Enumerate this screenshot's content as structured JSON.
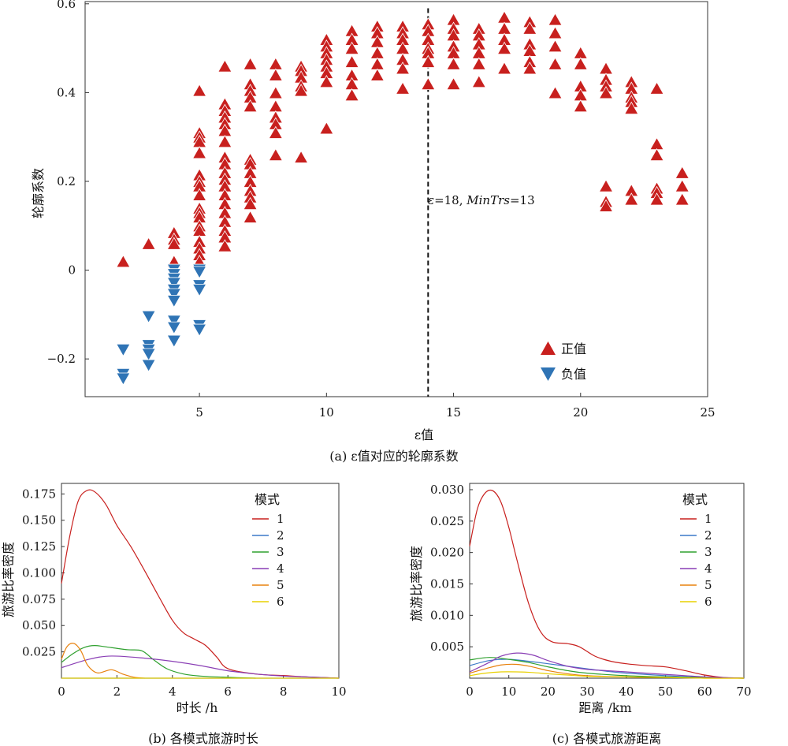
{
  "chart_data": [
    {
      "type": "scatter",
      "title": "(a) ε值对应的轮廓系数",
      "xlabel": "ε值",
      "ylabel": "轮廓系数",
      "xlim": [
        0.5,
        25
      ],
      "ylim": [
        -0.285,
        0.605
      ],
      "xticks": [
        "5",
        "10",
        "15",
        "20",
        "25"
      ],
      "yticks": [
        "−0.2",
        "0",
        "0.2",
        "0.4",
        "0.6"
      ],
      "legend": {
        "position": "bottom-right",
        "entries": [
          "正值",
          "负值"
        ]
      },
      "colors": {
        "positive": "#c8201e",
        "negative": "#2f74b5"
      },
      "annotation": {
        "x": 14,
        "label_eps": "ε",
        "label_rest1": "=18, ",
        "label_minTrs": "MinTrs",
        "label_rest2": "=13"
      },
      "positive": [
        {
          "x": 2,
          "y": [
            0.02
          ]
        },
        {
          "x": 3,
          "y": [
            0.06
          ]
        },
        {
          "x": 4,
          "y": [
            0.085,
            0.07,
            0.06,
            0.02
          ]
        },
        {
          "x": 5,
          "y": [
            0.405,
            0.31,
            0.3,
            0.29,
            0.265,
            0.215,
            0.2,
            0.19,
            0.17,
            0.14,
            0.13,
            0.12,
            0.1,
            0.09,
            0.065,
            0.05,
            0.035,
            0.02
          ]
        },
        {
          "x": 6,
          "y": [
            0.46,
            0.375,
            0.36,
            0.345,
            0.33,
            0.315,
            0.29,
            0.255,
            0.24,
            0.22,
            0.205,
            0.19,
            0.17,
            0.15,
            0.13,
            0.11,
            0.09,
            0.075,
            0.055
          ]
        },
        {
          "x": 7,
          "y": [
            0.465,
            0.42,
            0.405,
            0.39,
            0.37,
            0.25,
            0.24,
            0.22,
            0.2,
            0.18,
            0.165,
            0.15,
            0.12
          ]
        },
        {
          "x": 8,
          "y": [
            0.465,
            0.44,
            0.4,
            0.37,
            0.345,
            0.33,
            0.31,
            0.26
          ]
        },
        {
          "x": 9,
          "y": [
            0.46,
            0.45,
            0.435,
            0.415,
            0.405,
            0.255
          ]
        },
        {
          "x": 10,
          "y": [
            0.52,
            0.505,
            0.49,
            0.475,
            0.46,
            0.445,
            0.425,
            0.32
          ]
        },
        {
          "x": 11,
          "y": [
            0.54,
            0.52,
            0.5,
            0.47,
            0.44,
            0.42,
            0.395
          ]
        },
        {
          "x": 12,
          "y": [
            0.55,
            0.535,
            0.515,
            0.49,
            0.465,
            0.44
          ]
        },
        {
          "x": 13,
          "y": [
            0.55,
            0.535,
            0.52,
            0.5,
            0.475,
            0.455,
            0.41
          ]
        },
        {
          "x": 14,
          "y": [
            0.555,
            0.54,
            0.52,
            0.5,
            0.49,
            0.47,
            0.42
          ]
        },
        {
          "x": 15,
          "y": [
            0.565,
            0.545,
            0.53,
            0.505,
            0.49,
            0.465,
            0.42
          ]
        },
        {
          "x": 16,
          "y": [
            0.545,
            0.53,
            0.51,
            0.49,
            0.465,
            0.425
          ]
        },
        {
          "x": 17,
          "y": [
            0.57,
            0.545,
            0.52,
            0.5,
            0.455
          ]
        },
        {
          "x": 18,
          "y": [
            0.56,
            0.545,
            0.51,
            0.495,
            0.47,
            0.455
          ]
        },
        {
          "x": 19,
          "y": [
            0.565,
            0.535,
            0.505,
            0.465,
            0.4
          ]
        },
        {
          "x": 20,
          "y": [
            0.49,
            0.465,
            0.415,
            0.395,
            0.37
          ]
        },
        {
          "x": 21,
          "y": [
            0.455,
            0.43,
            0.415,
            0.4,
            0.19,
            0.155,
            0.145
          ]
        },
        {
          "x": 22,
          "y": [
            0.425,
            0.41,
            0.39,
            0.38,
            0.365,
            0.18,
            0.16
          ]
        },
        {
          "x": 23,
          "y": [
            0.41,
            0.285,
            0.26,
            0.185,
            0.175,
            0.16
          ]
        },
        {
          "x": 24,
          "y": [
            0.22,
            0.19,
            0.16
          ]
        }
      ],
      "negative": [
        {
          "x": 2,
          "y": [
            -0.18,
            -0.235,
            -0.245
          ]
        },
        {
          "x": 3,
          "y": [
            -0.105,
            -0.17,
            -0.18,
            -0.19,
            -0.215
          ]
        },
        {
          "x": 4,
          "y": [
            0.0,
            -0.01,
            -0.02,
            -0.03,
            -0.045,
            -0.055,
            -0.07,
            -0.115,
            -0.13,
            -0.16
          ]
        },
        {
          "x": 5,
          "y": [
            0.0,
            -0.005,
            -0.035,
            -0.045,
            -0.125,
            -0.135
          ]
        }
      ]
    },
    {
      "type": "line",
      "title": "(b) 各模式旅游时长",
      "xlabel": "时长 /h",
      "ylabel": "旅游比率密度",
      "xlim": [
        0,
        10
      ],
      "ylim": [
        0,
        0.185
      ],
      "xticks": [
        "0",
        "2",
        "4",
        "6",
        "8",
        "10"
      ],
      "yticks": [
        "0.025",
        "0.050",
        "0.075",
        "0.100",
        "0.125",
        "0.150",
        "0.175"
      ],
      "legend": {
        "title": "模式",
        "position": "top-right",
        "entries": [
          "1",
          "2",
          "3",
          "4",
          "5",
          "6"
        ]
      },
      "series": [
        {
          "name": "1",
          "color": "#c8201e",
          "x": [
            0,
            0.3,
            0.6,
            0.9,
            1.2,
            1.6,
            2,
            2.5,
            3,
            3.5,
            4,
            4.4,
            4.8,
            5.2,
            5.6,
            6,
            7,
            8,
            9,
            10
          ],
          "y": [
            0.09,
            0.135,
            0.168,
            0.178,
            0.177,
            0.165,
            0.145,
            0.125,
            0.102,
            0.078,
            0.055,
            0.043,
            0.037,
            0.031,
            0.02,
            0.009,
            0.004,
            0.0025,
            0.001,
            0
          ]
        },
        {
          "name": "2",
          "color": "#3c78c8",
          "x": [
            0,
            2,
            4,
            6,
            10
          ],
          "y": [
            0,
            0,
            0,
            0,
            0
          ]
        },
        {
          "name": "3",
          "color": "#2ea02e",
          "x": [
            0,
            0.4,
            0.8,
            1.2,
            1.8,
            2.4,
            2.9,
            3.3,
            3.8,
            4.4,
            5,
            5.8,
            7
          ],
          "y": [
            0.015,
            0.023,
            0.029,
            0.031,
            0.029,
            0.027,
            0.026,
            0.018,
            0.009,
            0.004,
            0.002,
            0.001,
            0
          ]
        },
        {
          "name": "4",
          "color": "#8a3fb5",
          "x": [
            0,
            1,
            1.8,
            3,
            4,
            5,
            6,
            7,
            8,
            9,
            10
          ],
          "y": [
            0.01,
            0.018,
            0.021,
            0.019,
            0.016,
            0.012,
            0.007,
            0.004,
            0.002,
            0.001,
            0
          ]
        },
        {
          "name": "5",
          "color": "#e8820e",
          "x": [
            0,
            0.2,
            0.45,
            0.7,
            0.95,
            1.3,
            1.8,
            2.2,
            2.6,
            3
          ],
          "y": [
            0.018,
            0.03,
            0.033,
            0.026,
            0.012,
            0.005,
            0.008,
            0.004,
            0.001,
            0
          ]
        },
        {
          "name": "6",
          "color": "#e8d000",
          "x": [
            0,
            2,
            4,
            6,
            10
          ],
          "y": [
            0,
            0,
            0,
            0,
            0
          ]
        }
      ]
    },
    {
      "type": "line",
      "title": "(c) 各模式旅游距离",
      "xlabel": "距离 /km",
      "ylabel": "旅游比率密度",
      "xlim": [
        0,
        70
      ],
      "ylim": [
        0,
        0.031
      ],
      "xticks": [
        "0",
        "10",
        "20",
        "30",
        "40",
        "50",
        "60",
        "70"
      ],
      "yticks": [
        "0.005",
        "0.010",
        "0.015",
        "0.020",
        "0.025",
        "0.030"
      ],
      "legend": {
        "title": "模式",
        "position": "top-right",
        "entries": [
          "1",
          "2",
          "3",
          "4",
          "5",
          "6"
        ]
      },
      "series": [
        {
          "name": "1",
          "color": "#c8201e",
          "x": [
            0,
            2,
            4,
            6,
            8,
            10,
            12,
            15,
            18,
            21,
            25,
            28,
            32,
            36,
            40,
            45,
            50,
            55,
            60,
            65,
            70
          ],
          "y": [
            0.021,
            0.027,
            0.0295,
            0.0298,
            0.028,
            0.024,
            0.019,
            0.012,
            0.0075,
            0.0058,
            0.0055,
            0.005,
            0.0035,
            0.0027,
            0.0023,
            0.002,
            0.0018,
            0.0012,
            0.0005,
            0.0001,
            0
          ]
        },
        {
          "name": "2",
          "color": "#3c78c8",
          "x": [
            0,
            5,
            10,
            15,
            20,
            25,
            30,
            35,
            40,
            50,
            60,
            70
          ],
          "y": [
            0.002,
            0.0028,
            0.003,
            0.0027,
            0.0023,
            0.0019,
            0.0015,
            0.0011,
            0.0008,
            0.0004,
            0.0001,
            0
          ]
        },
        {
          "name": "3",
          "color": "#2ea02e",
          "x": [
            0,
            5,
            10,
            15,
            20,
            25,
            30,
            40,
            50,
            60,
            70
          ],
          "y": [
            0.0029,
            0.0033,
            0.003,
            0.0025,
            0.0018,
            0.0012,
            0.0008,
            0.0004,
            0.0002,
            0.0001,
            0
          ]
        },
        {
          "name": "4",
          "color": "#8a3fb5",
          "x": [
            0,
            5,
            8,
            12,
            16,
            20,
            25,
            30,
            35,
            40,
            45,
            50,
            55,
            60,
            65,
            70
          ],
          "y": [
            0.001,
            0.0025,
            0.0035,
            0.004,
            0.0037,
            0.0028,
            0.0019,
            0.0014,
            0.0012,
            0.001,
            0.0008,
            0.0006,
            0.0004,
            0.0002,
            0.0001,
            0
          ]
        },
        {
          "name": "5",
          "color": "#e8820e",
          "x": [
            0,
            4,
            8,
            12,
            16,
            20,
            25,
            30,
            40,
            50,
            60,
            70
          ],
          "y": [
            0.0008,
            0.0015,
            0.0021,
            0.0022,
            0.0018,
            0.0012,
            0.0007,
            0.0004,
            0.0002,
            0.0001,
            0,
            0
          ]
        },
        {
          "name": "6",
          "color": "#e8d000",
          "x": [
            0,
            4,
            8,
            12,
            16,
            20,
            25,
            30,
            40,
            50,
            60,
            70
          ],
          "y": [
            0.0004,
            0.0008,
            0.001,
            0.001,
            0.0009,
            0.0007,
            0.0005,
            0.0003,
            0.0002,
            0.0001,
            0,
            0
          ]
        }
      ]
    }
  ]
}
